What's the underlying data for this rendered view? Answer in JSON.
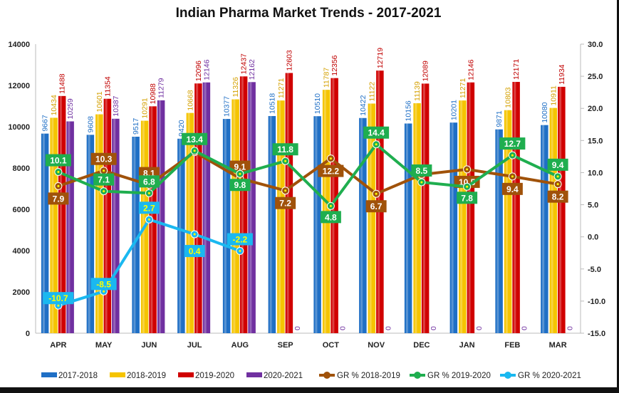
{
  "chart_data": {
    "type": "bar",
    "title": "Indian Pharma Market Trends - 2017-2021",
    "categories": [
      "APR",
      "MAY",
      "JUN",
      "JUL",
      "AUG",
      "SEP",
      "OCT",
      "NOV",
      "DEC",
      "JAN",
      "FEB",
      "MAR"
    ],
    "ylim": [
      0,
      14000
    ],
    "yticks": [
      "0",
      "2000",
      "4000",
      "6000",
      "8000",
      "10000",
      "12000",
      "14000"
    ],
    "y2lim": [
      -15,
      30
    ],
    "y2ticks": [
      "-15.0",
      "-10.0",
      "-5.0",
      "0.0",
      "5.0",
      "10.0",
      "15.0",
      "20.0",
      "25.0",
      "30.0"
    ],
    "grid": false,
    "legend": "bottom",
    "series": [
      {
        "name": "2017-2018",
        "color": "#1f6fc5",
        "values": [
          9667,
          9608,
          9517,
          9420,
          10377,
          10518,
          10510,
          10422,
          10156,
          10201,
          9871,
          10080
        ]
      },
      {
        "name": "2018-2019",
        "color": "#f5c400",
        "values": [
          10434,
          10601,
          10291,
          10668,
          11326,
          11271,
          11787,
          11122,
          11139,
          11271,
          10803,
          10911
        ]
      },
      {
        "name": "2019-2020",
        "color": "#d00000",
        "values": [
          11488,
          11354,
          10988,
          12096,
          12437,
          12603,
          12356,
          12719,
          12089,
          12146,
          12171,
          11934
        ]
      },
      {
        "name": "2020-2021",
        "color": "#7030a0",
        "values": [
          10259,
          10387,
          11279,
          12146,
          12162,
          0,
          0,
          0,
          0,
          0,
          0,
          0
        ]
      }
    ],
    "line_series": [
      {
        "name": "GR % 2018-2019",
        "color": "#a0520a",
        "values": [
          7.9,
          10.3,
          8.1,
          13.2,
          9.1,
          7.2,
          12.2,
          6.7,
          9.7,
          10.5,
          9.4,
          8.2
        ],
        "labels": [
          "7.9",
          "10.3",
          "8.1",
          "",
          "9.1",
          "7.2",
          "12.2",
          "6.7",
          "",
          "10.5",
          "9.4",
          "8.2"
        ]
      },
      {
        "name": "GR % 2019-2020",
        "color": "#1fae4f",
        "values": [
          10.1,
          7.1,
          6.8,
          13.4,
          9.8,
          11.8,
          4.8,
          14.4,
          8.5,
          7.8,
          12.7,
          9.4
        ],
        "labels": [
          "10.1",
          "7.1",
          "6.8",
          "13.4",
          "9.8",
          "11.8",
          "4.8",
          "14.4",
          "8.5",
          "7.8",
          "12.7",
          "9.4"
        ]
      },
      {
        "name": "GR % 2020-2021",
        "color": "#1ab8f0",
        "values": [
          -10.7,
          -8.5,
          2.7,
          0.4,
          -2.2
        ],
        "labels": [
          "-10.7",
          "-8.5",
          "2.7",
          "0.4",
          "-2.2"
        ]
      }
    ]
  }
}
